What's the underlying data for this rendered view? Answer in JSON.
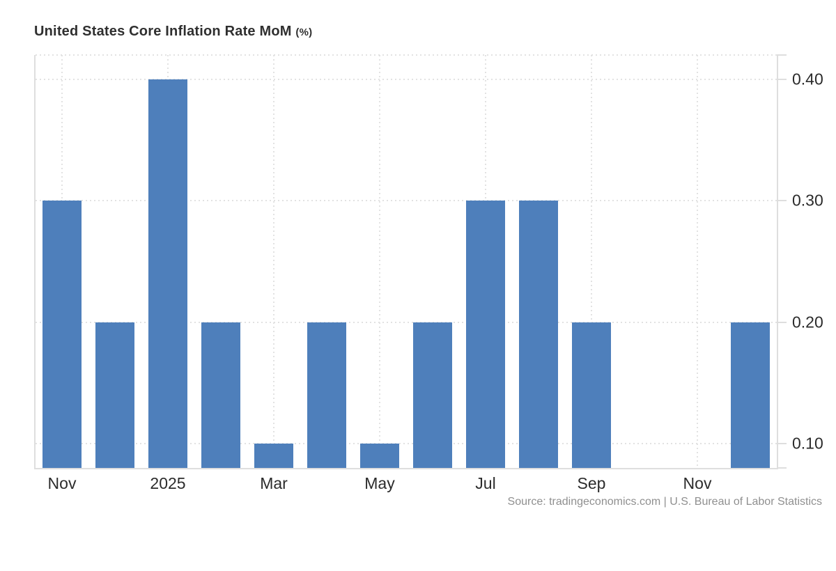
{
  "chart_data": {
    "type": "bar",
    "title": "United States Core Inflation Rate MoM",
    "title_suffix": "(%)",
    "source": "Source: tradingeconomics.com | U.S. Bureau of Labor Statistics",
    "x": [
      "Nov 2024",
      "Dec 2024",
      "Jan 2025",
      "Feb 2025",
      "Mar 2025",
      "Apr 2025",
      "May 2025",
      "Jun 2025",
      "Jul 2025",
      "Aug 2025",
      "Sep 2025",
      "Oct 2025",
      "Nov 2025",
      "Dec 2025"
    ],
    "values": [
      0.3,
      0.2,
      0.4,
      0.2,
      0.1,
      0.2,
      0.1,
      0.2,
      0.3,
      0.3,
      0.2,
      null,
      null,
      0.2
    ],
    "xticks": [
      {
        "index": 0,
        "label": "Nov"
      },
      {
        "index": 2,
        "label": "2025"
      },
      {
        "index": 4,
        "label": "Mar"
      },
      {
        "index": 6,
        "label": "May"
      },
      {
        "index": 8,
        "label": "Jul"
      },
      {
        "index": 10,
        "label": "Sep"
      },
      {
        "index": 12,
        "label": "Nov"
      }
    ],
    "yticks": [
      {
        "value": 0.4,
        "label": "0.40"
      },
      {
        "value": 0.3,
        "label": "0.30"
      },
      {
        "value": 0.2,
        "label": "0.20"
      },
      {
        "value": 0.1,
        "label": "0.10"
      }
    ],
    "ylim": [
      0.08,
      0.42
    ],
    "grid": "dotted",
    "legend_position": "none",
    "bar_color": "#4e7fbb"
  },
  "colors": {
    "bar": "#4e7fbb",
    "axis_line": "#dedede",
    "grid_line": "#e2e2e2",
    "tick_label": "#2b2b2b",
    "title": "#2f2f2f",
    "source_text": "#8f8f8f",
    "background": "#ffffff"
  }
}
